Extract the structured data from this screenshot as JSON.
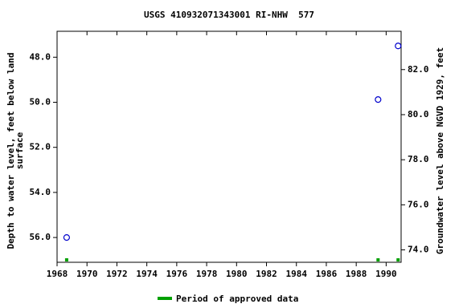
{
  "chart_data": {
    "type": "scatter",
    "title": "USGS 410932071343001 RI-NHW  577",
    "ylabel": [
      "Depth to water level, feet below land",
      "surface"
    ],
    "y2label": "Groundwater level above NGVD 1929, feet",
    "xlim": [
      1968,
      1991
    ],
    "xticks": [
      1968,
      1970,
      1972,
      1974,
      1976,
      1978,
      1980,
      1982,
      1984,
      1986,
      1988,
      1990
    ],
    "ylim": [
      46.85,
      57.1
    ],
    "y_inverted": true,
    "yticks": [
      {
        "value": 48,
        "label": "48.0"
      },
      {
        "value": 50,
        "label": "50.0"
      },
      {
        "value": 52,
        "label": "52.0"
      },
      {
        "value": 54,
        "label": "54.0"
      },
      {
        "value": 56,
        "label": "56.0"
      }
    ],
    "y2lim": [
      73.45,
      83.7
    ],
    "y2ticks": [
      {
        "value": 74,
        "label": "74.0"
      },
      {
        "value": 76,
        "label": "76.0"
      },
      {
        "value": 78,
        "label": "78.0"
      },
      {
        "value": 80,
        "label": "80.0"
      },
      {
        "value": 82,
        "label": "82.0"
      }
    ],
    "series": [
      {
        "color": "#0000cc",
        "x": [
          1968.64,
          1989.46,
          1990.8
        ],
        "values": [
          56.0,
          49.88,
          47.5
        ]
      }
    ],
    "approved": {
      "name": "Period of approved data",
      "color": "#00a000",
      "x": [
        1968.64,
        1989.46,
        1990.8
      ]
    }
  }
}
